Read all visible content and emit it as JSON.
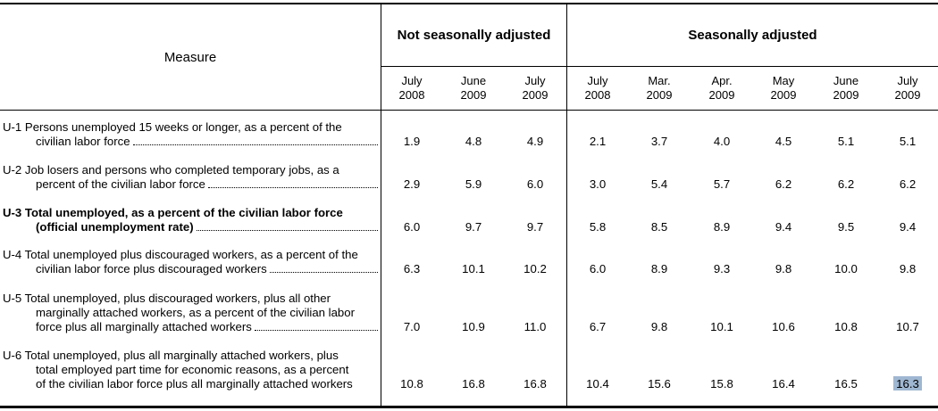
{
  "table": {
    "measure_header": "Measure",
    "group_nsa": "Not seasonally adjusted",
    "group_sa": "Seasonally adjusted",
    "columns": [
      {
        "month": "July",
        "year": "2008"
      },
      {
        "month": "June",
        "year": "2009"
      },
      {
        "month": "July",
        "year": "2009"
      },
      {
        "month": "July",
        "year": "2008"
      },
      {
        "month": "Mar.",
        "year": "2009"
      },
      {
        "month": "Apr.",
        "year": "2009"
      },
      {
        "month": "May",
        "year": "2009"
      },
      {
        "month": "June",
        "year": "2009"
      },
      {
        "month": "July",
        "year": "2009"
      }
    ],
    "rows": [
      {
        "lines": [
          "U-1 Persons unemployed 15 weeks or longer, as a percent of the",
          "civilian labor force"
        ],
        "values": [
          "1.9",
          "4.8",
          "4.9",
          "2.1",
          "3.7",
          "4.0",
          "4.5",
          "5.1",
          "5.1"
        ]
      },
      {
        "lines": [
          "U-2 Job losers and persons who completed temporary jobs, as a",
          "percent of the civilian labor force"
        ],
        "values": [
          "2.9",
          "5.9",
          "6.0",
          "3.0",
          "5.4",
          "5.7",
          "6.2",
          "6.2",
          "6.2"
        ]
      },
      {
        "lines": [
          "U-3 Total unemployed, as a percent of the civilian labor force",
          "(official unemployment rate)"
        ],
        "values": [
          "6.0",
          "9.7",
          "9.7",
          "5.8",
          "8.5",
          "8.9",
          "9.4",
          "9.5",
          "9.4"
        ]
      },
      {
        "lines": [
          "U-4 Total unemployed plus discouraged workers, as a percent of the",
          "civilian labor force plus discouraged workers"
        ],
        "values": [
          "6.3",
          "10.1",
          "10.2",
          "6.0",
          "8.9",
          "9.3",
          "9.8",
          "10.0",
          "9.8"
        ]
      },
      {
        "lines": [
          "U-5 Total unemployed, plus discouraged workers, plus all other",
          "marginally attached workers, as a percent of the civilian labor",
          "force plus all marginally attached workers"
        ],
        "values": [
          "7.0",
          "10.9",
          "11.0",
          "6.7",
          "9.8",
          "10.1",
          "10.6",
          "10.8",
          "10.7"
        ]
      },
      {
        "lines": [
          "U-6 Total unemployed, plus all marginally attached workers, plus",
          "total employed part time for economic reasons, as a percent",
          "of the civilian labor force plus all marginally attached workers"
        ],
        "values": [
          "10.8",
          "16.8",
          "16.8",
          "10.4",
          "15.6",
          "15.8",
          "16.4",
          "16.5",
          "16.3"
        ]
      }
    ],
    "highlight_color": "#9fb7d1"
  }
}
